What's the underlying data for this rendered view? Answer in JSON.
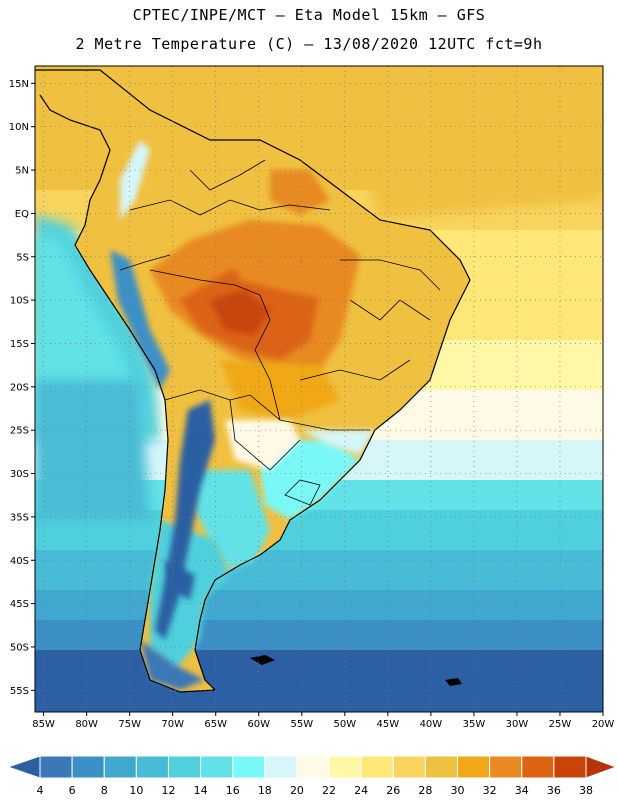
{
  "header": {
    "line1": "CPTEC/INPE/MCT –   Eta Model 15km – GFS",
    "line2": "2 Metre Temperature (C) – 13/08/2020 12UTC fct=9h"
  },
  "map": {
    "lon_range": [
      -86,
      -20
    ],
    "lat_range": [
      -57.5,
      17
    ],
    "lon_ticks": [
      {
        "value": -85,
        "label": "85W"
      },
      {
        "value": -80,
        "label": "80W"
      },
      {
        "value": -75,
        "label": "75W"
      },
      {
        "value": -70,
        "label": "70W"
      },
      {
        "value": -65,
        "label": "65W"
      },
      {
        "value": -60,
        "label": "60W"
      },
      {
        "value": -55,
        "label": "55W"
      },
      {
        "value": -50,
        "label": "50W"
      },
      {
        "value": -45,
        "label": "45W"
      },
      {
        "value": -40,
        "label": "40W"
      },
      {
        "value": -35,
        "label": "35W"
      },
      {
        "value": -30,
        "label": "30W"
      },
      {
        "value": -25,
        "label": "25W"
      },
      {
        "value": -20,
        "label": "20W"
      }
    ],
    "lat_ticks": [
      {
        "value": 15,
        "label": "15N"
      },
      {
        "value": 10,
        "label": "10N"
      },
      {
        "value": 5,
        "label": "5N"
      },
      {
        "value": 0,
        "label": "EQ"
      },
      {
        "value": -5,
        "label": "5S"
      },
      {
        "value": -10,
        "label": "10S"
      },
      {
        "value": -15,
        "label": "15S"
      },
      {
        "value": -20,
        "label": "20S"
      },
      {
        "value": -25,
        "label": "25S"
      },
      {
        "value": -30,
        "label": "30S"
      },
      {
        "value": -35,
        "label": "35S"
      },
      {
        "value": -40,
        "label": "40S"
      },
      {
        "value": -45,
        "label": "45S"
      },
      {
        "value": -50,
        "label": "50S"
      },
      {
        "value": -55,
        "label": "55S"
      }
    ],
    "variable": "2 Metre Temperature",
    "units": "C"
  },
  "colorbar": {
    "labels": [
      "4",
      "6",
      "8",
      "10",
      "12",
      "14",
      "16",
      "18",
      "20",
      "22",
      "24",
      "26",
      "28",
      "30",
      "32",
      "34",
      "36",
      "38"
    ],
    "colors": [
      "#2c5fa3",
      "#3a78b8",
      "#3c90c6",
      "#40a8cf",
      "#48bcd6",
      "#50d0dc",
      "#62e2e6",
      "#7af8f8",
      "#d6f6fa",
      "#fffae6",
      "#fff8a6",
      "#ffe878",
      "#f8d45e",
      "#f0c040",
      "#f0a818",
      "#e88a20",
      "#dc6412",
      "#c84408",
      "#b83408"
    ]
  }
}
